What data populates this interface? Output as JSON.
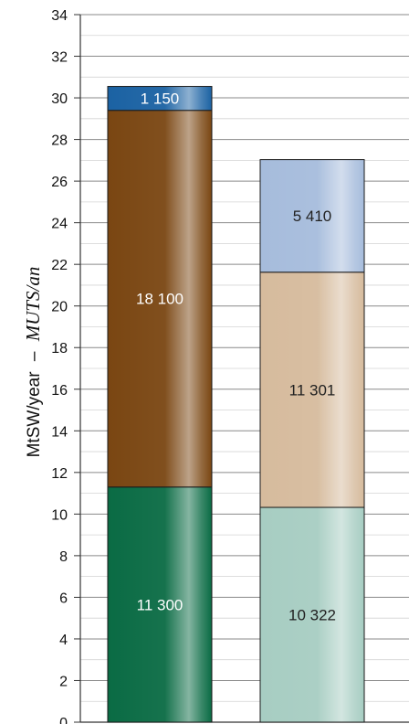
{
  "chart_data": {
    "type": "bar",
    "stacked": true,
    "categories": [
      "",
      ""
    ],
    "ylabel": {
      "main": "MtSW/year",
      "separator": "–",
      "alt": "MUTS/an"
    },
    "ylim": [
      0,
      34
    ],
    "yticks": [
      "0",
      "2",
      "4",
      "6",
      "8",
      "10",
      "12",
      "14",
      "16",
      "18",
      "20",
      "22",
      "24",
      "26",
      "28",
      "30",
      "32",
      "34"
    ],
    "grid": true,
    "minor_grid": true,
    "legend": "none",
    "bars": [
      {
        "segments": [
          {
            "value": 11.3,
            "label": "11 300",
            "color": "#0a6b44",
            "label_color": "#ffffff"
          },
          {
            "value": 18.1,
            "label": "18 100",
            "color": "#7a4612",
            "label_color": "#ffffff"
          },
          {
            "value": 1.15,
            "label": "1 150",
            "color": "#1b62a3",
            "label_color": "#ffffff"
          }
        ]
      },
      {
        "segments": [
          {
            "value": 10.322,
            "label": "10 322",
            "color": "#a7cdc2",
            "label_color": "#222222"
          },
          {
            "value": 11.301,
            "label": "11 301",
            "color": "#d6bb9d",
            "label_color": "#222222"
          },
          {
            "value": 5.41,
            "label": "5 410",
            "color": "#a6bcdc",
            "label_color": "#222222"
          }
        ]
      }
    ]
  }
}
